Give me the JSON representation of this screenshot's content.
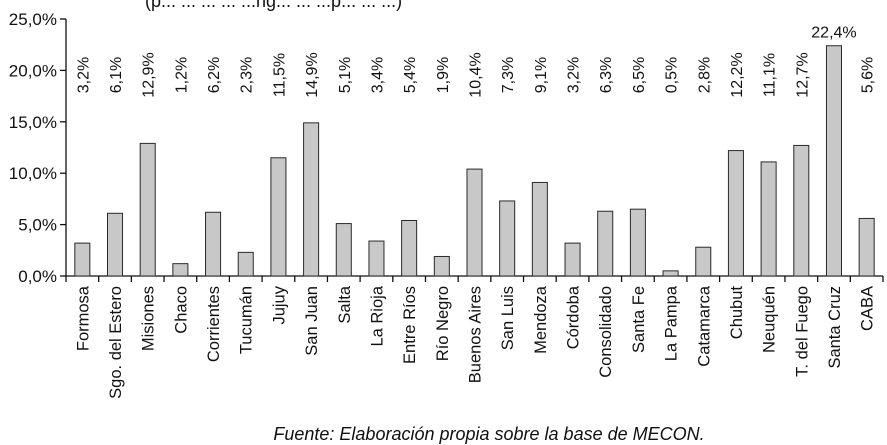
{
  "subtitle": "(p... ... ... ... ...ng... ... ...p... ... ...)",
  "source": "Fuente: Elaboración propia sobre la base de MECON.",
  "chart_data": {
    "type": "bar",
    "categories": [
      "Formosa",
      "Sgo. del Estero",
      "Misiones",
      "Chaco",
      "Corrientes",
      "Tucumán",
      "Jujuy",
      "San Juan",
      "Salta",
      "La Rioja",
      "Entre Ríos",
      "Río Negro",
      "Buenos Aires",
      "San Luis",
      "Mendoza",
      "Córdoba",
      "Consolidado",
      "Santa Fe",
      "La Pampa",
      "Catamarca",
      "Chubut",
      "Neuquén",
      "T. del Fuego",
      "Santa Cruz",
      "CABA"
    ],
    "values": [
      3.2,
      6.1,
      12.9,
      1.2,
      6.2,
      2.3,
      11.5,
      14.9,
      5.1,
      3.4,
      5.4,
      1.9,
      10.4,
      7.3,
      9.1,
      3.2,
      6.3,
      6.5,
      0.5,
      2.8,
      12.2,
      11.1,
      12.7,
      22.4,
      5.6
    ],
    "data_labels": [
      "3,2%",
      "6,1%",
      "12,9%",
      "1,2%",
      "6,2%",
      "2,3%",
      "11,5%",
      "14,9%",
      "5,1%",
      "3,4%",
      "5,4%",
      "1,9%",
      "10,4%",
      "7,3%",
      "9,1%",
      "3,2%",
      "6,3%",
      "6,5%",
      "0,5%",
      "2,8%",
      "12,2%",
      "11,1%",
      "12,7%",
      "22,4%",
      "5,6%"
    ],
    "y_ticks": [
      "0,0%",
      "5,0%",
      "10,0%",
      "15,0%",
      "20,0%",
      "25,0%"
    ],
    "ylim": [
      0,
      25
    ],
    "title": "",
    "xlabel": "",
    "ylabel": "",
    "grid": false,
    "legend": "none",
    "bar_color": "#c8c8c8"
  }
}
